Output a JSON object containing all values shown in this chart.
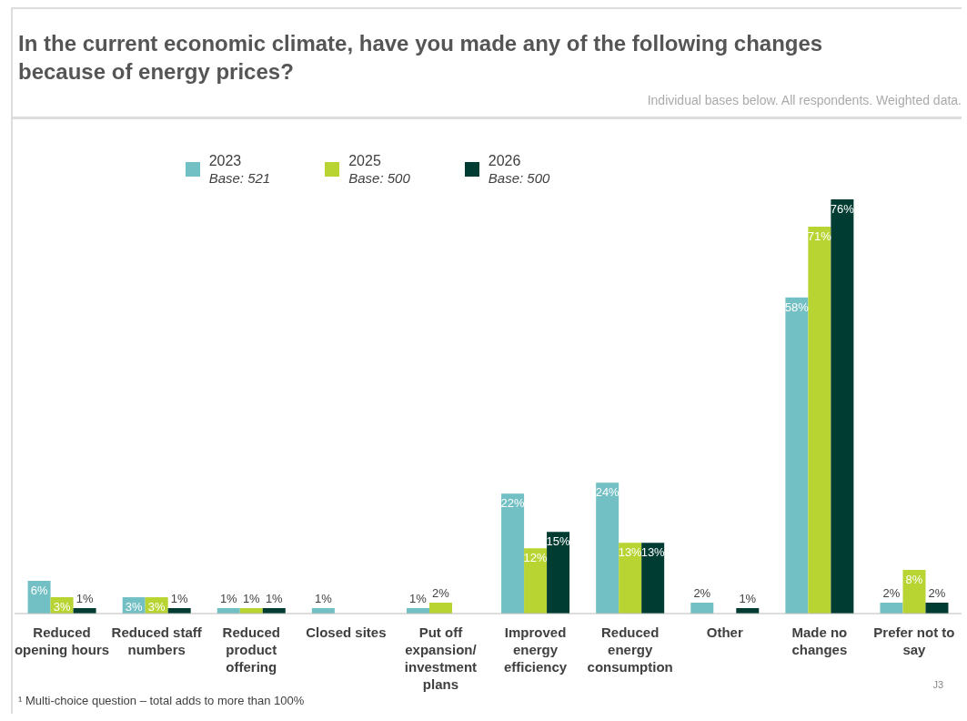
{
  "chart_data": {
    "type": "bar",
    "title": "In the current economic climate, have you made any of the following changes because of energy prices?",
    "subtitle": "Individual bases below. All respondents. Weighted data.",
    "categories": [
      "Reduced opening hours",
      "Reduced staff numbers",
      "Reduced product offering",
      "Closed sites",
      "Put off expansion/ investment plans",
      "Improved energy efficiency",
      "Reduced energy consumption",
      "Other",
      "Made no changes",
      "Prefer not to say"
    ],
    "series": [
      {
        "name": "2023\nBase: 521",
        "color": "#72bfc4",
        "values": [
          6,
          3,
          1,
          1,
          1,
          22,
          24,
          2,
          58,
          2
        ],
        "value_labels": [
          "6%",
          "3%",
          "1%",
          "1%",
          "1%",
          "22%",
          "24%",
          "2%",
          "58%",
          "2%"
        ]
      },
      {
        "name": "2025\nBase: 500",
        "color": "#b8d432",
        "values": [
          3,
          3,
          1,
          null,
          2,
          12,
          13,
          null,
          71,
          8
        ],
        "value_labels": [
          "3%",
          "3%",
          "1%",
          null,
          "2%",
          "12%",
          "13%",
          null,
          "71%",
          "8%"
        ]
      },
      {
        "name": "2026\nBase: 500",
        "color": "#003c32",
        "values": [
          1,
          1,
          1,
          null,
          null,
          15,
          13,
          1,
          76,
          2
        ],
        "value_labels": [
          "1%",
          "1%",
          "1%",
          null,
          null,
          "15%",
          "13%",
          "1%",
          "76%",
          "2%"
        ]
      }
    ],
    "legend": "top",
    "annotations": [
      "¹ Multi-choice question – total adds to more than 100%",
      "J3"
    ]
  }
}
